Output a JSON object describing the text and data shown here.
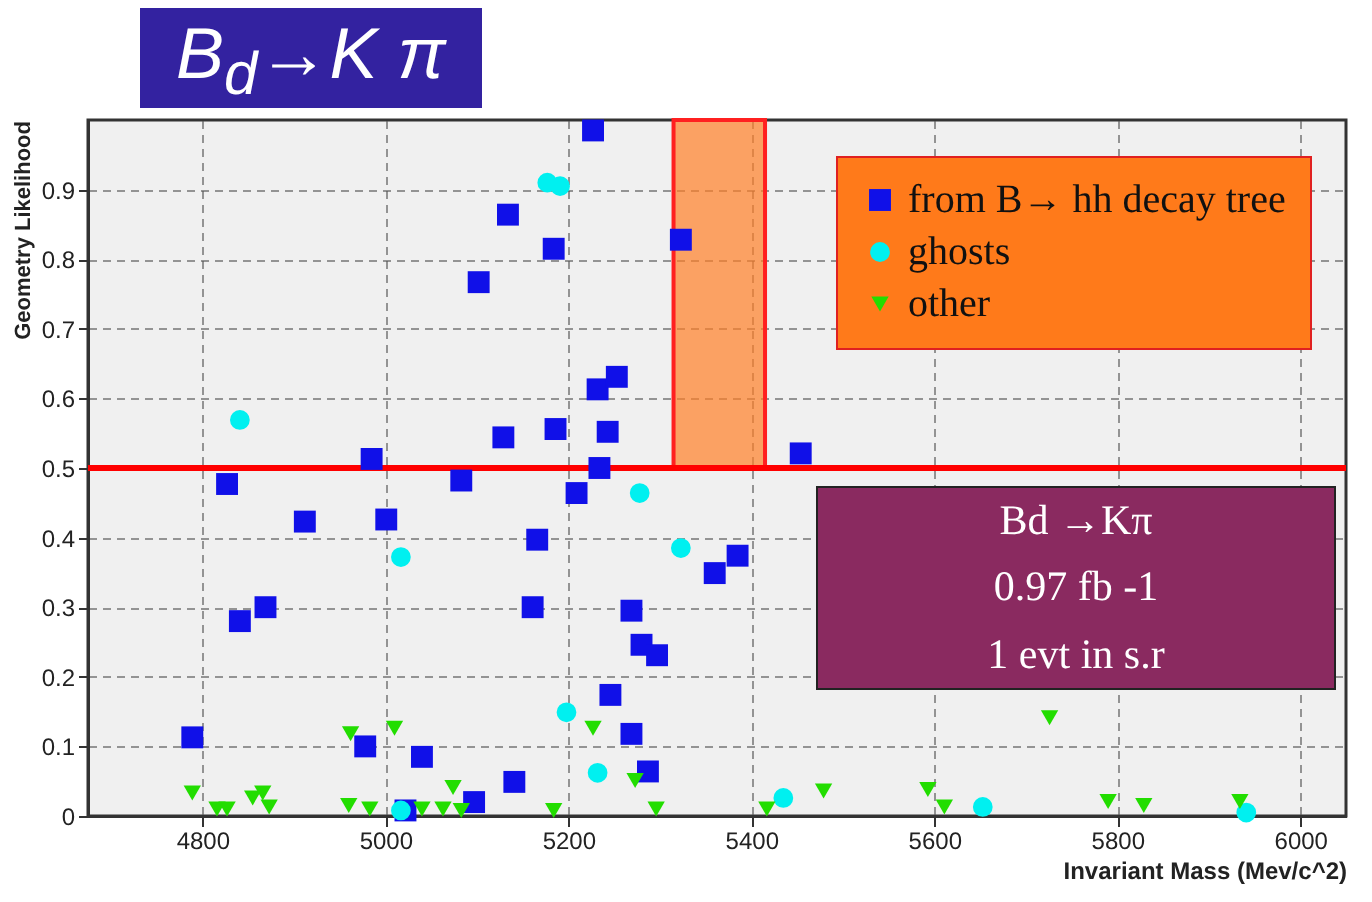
{
  "chart_data": {
    "type": "scatter",
    "title": "B$_{d}$→K π",
    "xlabel": "Invariant Mass (Mev/c^2)",
    "ylabel": "Geometry Likelihood",
    "xlim": [
      4675,
      6050
    ],
    "xticks": [
      4800,
      5000,
      5200,
      5400,
      5600,
      5800,
      6000
    ],
    "ylim": [
      0,
      1
    ],
    "yticks": [
      0,
      0.1,
      0.2,
      0.3,
      0.4,
      0.5,
      0.6,
      0.7,
      0.8,
      0.9
    ],
    "grid": true,
    "legend": "top right",
    "series": [
      {
        "name": "from B→ hh decay tree",
        "color": "#1010e8",
        "marker": "square",
        "x": [
          5227,
          5134,
          5184,
          5102,
          5232,
          5253,
          5129,
          5186,
          5243,
          4985,
          5234,
          4827,
          5083,
          5209,
          5454,
          5323,
          4912,
          5001,
          5166,
          4869,
          4841,
          5161,
          5269,
          5280,
          5297,
          5246,
          5269,
          4789,
          4978,
          5040,
          5141,
          5097,
          5287,
          5022,
          5385,
          5360
        ],
        "values": [
          0.985,
          0.864,
          0.815,
          0.767,
          0.613,
          0.631,
          0.544,
          0.556,
          0.552,
          0.513,
          0.5,
          0.477,
          0.482,
          0.464,
          0.521,
          0.828,
          0.423,
          0.426,
          0.397,
          0.3,
          0.28,
          0.3,
          0.295,
          0.246,
          0.231,
          0.174,
          0.118,
          0.113,
          0.1,
          0.085,
          0.049,
          0.02,
          0.064,
          0.008,
          0.374,
          0.349
        ]
      },
      {
        "name": "ghosts",
        "color": "#00f0f0",
        "marker": "circle",
        "x": [
          5177,
          5191,
          4841,
          5278,
          5017,
          5198,
          5232,
          5017,
          5323,
          5435,
          5653,
          5941
        ],
        "values": [
          0.91,
          0.905,
          0.569,
          0.464,
          0.372,
          0.149,
          0.062,
          0.008,
          0.385,
          0.026,
          0.013,
          0.005
        ]
      },
      {
        "name": "other",
        "color": "#22dd00",
        "marker": "triangle",
        "x": [
          4789,
          4816,
          4827,
          4855,
          4866,
          4873,
          4962,
          4960,
          4983,
          5010,
          5040,
          5063,
          5074,
          5083,
          5184,
          5227,
          5273,
          5296,
          5417,
          5479,
          5593,
          5611,
          5726,
          5790,
          5829,
          5934
        ],
        "values": [
          0.033,
          0.01,
          0.01,
          0.026,
          0.033,
          0.013,
          0.118,
          0.015,
          0.01,
          0.126,
          0.01,
          0.01,
          0.041,
          0.008,
          0.008,
          0.126,
          0.051,
          0.01,
          0.01,
          0.036,
          0.038,
          0.013,
          0.141,
          0.021,
          0.015,
          0.021
        ]
      }
    ],
    "ref_lines": [
      {
        "axis": "y",
        "value": 0.5,
        "color": "#ff0000"
      }
    ],
    "bands": [
      {
        "axis": "x",
        "from": 5315,
        "to": 5415,
        "color": "#ff7f27"
      }
    ],
    "annotations": [
      "Bd →Kπ",
      "0.97 fb -1",
      "1 evt in s.r"
    ]
  }
}
